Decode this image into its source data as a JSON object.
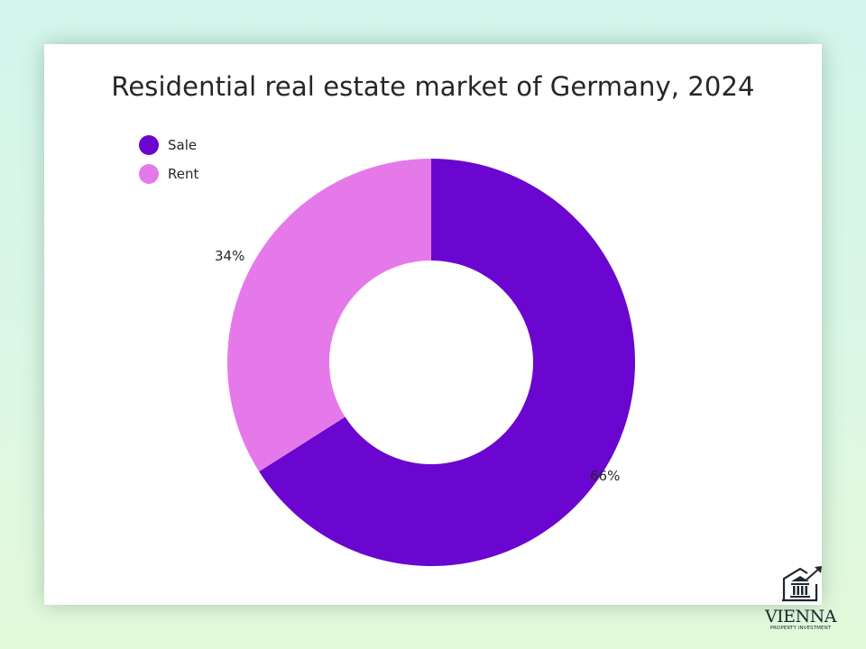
{
  "chart_data": {
    "type": "pie",
    "variant": "donut",
    "title": "Residential real estate market of Germany, 2024",
    "categories": [
      "Sale",
      "Rent"
    ],
    "values": [
      66,
      34
    ],
    "unit": "%",
    "data_labels": [
      "66%",
      "34%"
    ],
    "colors": [
      "#6a06cf",
      "#e579ea"
    ],
    "legend_position": "top-left",
    "grid": false
  },
  "legend": {
    "items": [
      {
        "label": "Sale",
        "color": "#6a06cf"
      },
      {
        "label": "Rent",
        "color": "#e579ea"
      }
    ]
  },
  "labels": {
    "sale": "66%",
    "rent": "34%"
  },
  "logo": {
    "name": "VIENNA",
    "subtitle": "PROPERTY INVESTMENT"
  }
}
